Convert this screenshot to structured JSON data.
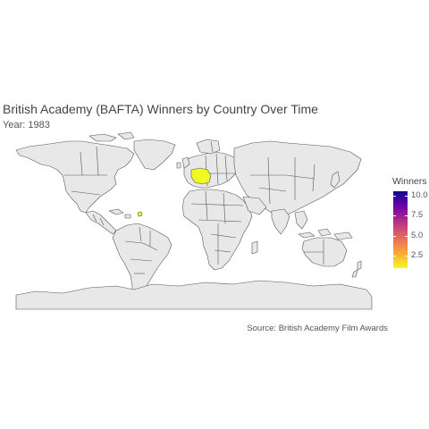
{
  "title": "British Academy (BAFTA) Winners by Country Over Time",
  "subtitle": "Year: 1983",
  "caption": "Source: British Academy Film Awards",
  "legend": {
    "title": "Winners",
    "ticks": [
      {
        "label": "10.0",
        "value": 10.0
      },
      {
        "label": "7.5",
        "value": 7.5
      },
      {
        "label": "5.0",
        "value": 5.0
      },
      {
        "label": "2.5",
        "value": 2.5
      }
    ],
    "range": [
      1,
      10.5
    ],
    "palette": [
      "#0d0887",
      "#6a00a8",
      "#b12a90",
      "#e16462",
      "#fca636",
      "#f0f921"
    ]
  },
  "map": {
    "land_color": "#e8e8e8",
    "border_color": "#555555",
    "highlighted_regions": [
      {
        "region": "western-europe",
        "winners": 1,
        "color": "#f0f921"
      },
      {
        "region": "caribbean-islands",
        "winners": 1,
        "color": "#f0f921"
      }
    ]
  }
}
